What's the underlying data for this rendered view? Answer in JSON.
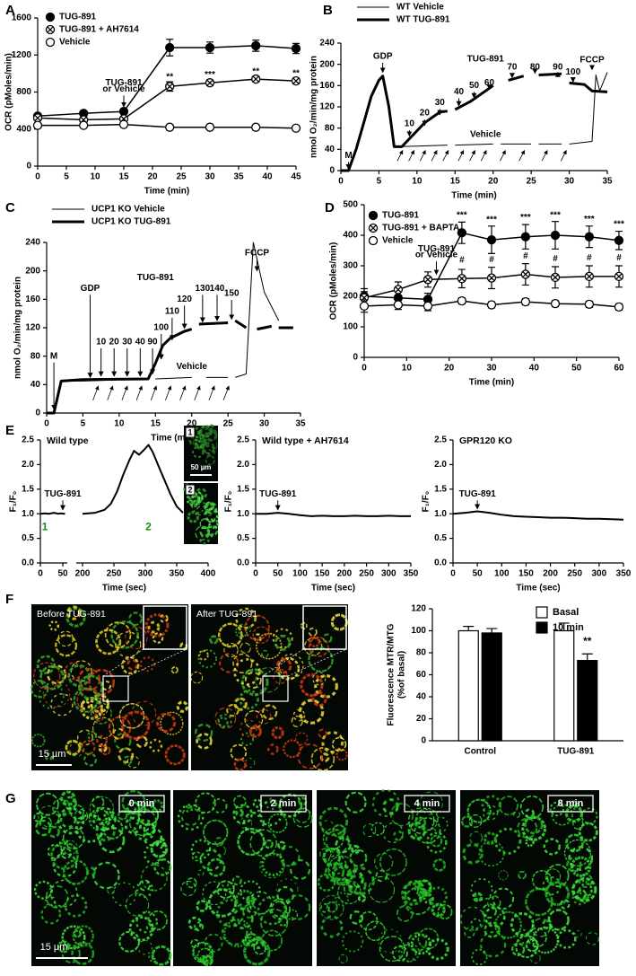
{
  "panel_labels": [
    "A",
    "B",
    "C",
    "D",
    "E",
    "F",
    "G"
  ],
  "chart_data": [
    {
      "type": "line",
      "xlabel": "Time (min)",
      "ylabel": "OCR (pMoles/min)",
      "xlim": [
        0,
        45
      ],
      "xticks": [
        0,
        5,
        10,
        15,
        20,
        25,
        30,
        35,
        40,
        45
      ],
      "ylim": [
        0,
        1600
      ],
      "yticks": [
        0,
        400,
        800,
        1200,
        1600
      ],
      "series": [
        {
          "name": "TUG-891",
          "color": "#000000",
          "marker": "filled",
          "x": [
            0,
            8,
            15,
            23,
            30,
            38,
            45
          ],
          "values": [
            540,
            570,
            590,
            1280,
            1280,
            1300,
            1270
          ],
          "errors": [
            20,
            20,
            25,
            90,
            60,
            60,
            55
          ]
        },
        {
          "name": "TUG-891 + AH7614",
          "color": "#000000",
          "marker": "crossed",
          "x": [
            0,
            8,
            15,
            23,
            30,
            38,
            45
          ],
          "values": [
            520,
            500,
            510,
            860,
            900,
            940,
            920
          ],
          "errors": [
            20,
            20,
            20,
            50,
            30,
            30,
            30
          ]
        },
        {
          "name": "Vehicle",
          "color": "#000000",
          "marker": "open",
          "x": [
            0,
            8,
            15,
            23,
            30,
            38,
            45
          ],
          "values": [
            440,
            440,
            450,
            420,
            420,
            420,
            410
          ],
          "errors": [
            15,
            15,
            15,
            15,
            15,
            15,
            15
          ]
        }
      ],
      "annotations": [
        "TUG-891",
        "or Vehicle",
        "**",
        "***",
        "**",
        "**"
      ]
    },
    {
      "type": "line",
      "xlabel": "Time (min)",
      "ylabel": "nmol O₂/min/mg protein",
      "xlim": [
        0,
        35
      ],
      "xticks": [
        0,
        5,
        10,
        15,
        20,
        25,
        30,
        35
      ],
      "ylim": [
        0,
        240
      ],
      "yticks": [
        0,
        40,
        80,
        120,
        160,
        200,
        240
      ],
      "series": [
        {
          "name": "WT Vehicle",
          "color": "#000000",
          "line_width": 1,
          "x": [
            0,
            1,
            2,
            3,
            4,
            5,
            5.5,
            6.3,
            7,
            10,
            14,
            14.5,
            15,
            20,
            20.5,
            21,
            25,
            25.5,
            26,
            29,
            29.5,
            30,
            33,
            33.5,
            34,
            35
          ],
          "values": [
            0,
            0,
            40,
            90,
            140,
            170,
            178,
            120,
            45,
            46,
            48,
            null,
            48,
            50,
            null,
            50,
            50,
            null,
            50,
            50,
            null,
            50,
            55,
            180,
            150,
            185
          ]
        },
        {
          "name": "WT TUG-891",
          "color": "#000000",
          "line_width": 3,
          "x": [
            0,
            1,
            2,
            3,
            4,
            5,
            5.5,
            6.3,
            7,
            8,
            9,
            10,
            11,
            12,
            13,
            14,
            14.5,
            15,
            17,
            19,
            20,
            20.5,
            22,
            24,
            24.5,
            26,
            29,
            29.5,
            30,
            32,
            33,
            35
          ],
          "values": [
            0,
            0,
            40,
            90,
            140,
            170,
            178,
            120,
            45,
            45,
            60,
            75,
            90,
            100,
            110,
            112,
            null,
            115,
            130,
            150,
            160,
            null,
            170,
            178,
            null,
            180,
            182,
            null,
            165,
            162,
            150,
            148
          ]
        }
      ],
      "annotations": [
        "M",
        "GDP",
        "TUG-891",
        "10",
        "20",
        "30",
        "40",
        "50",
        "60",
        "70",
        "80",
        "90",
        "100",
        "FCCP",
        "Vehicle"
      ]
    },
    {
      "type": "line",
      "xlabel": "Time (min)",
      "ylabel": "nmol O₂/min/mg protein",
      "xlim": [
        0,
        35
      ],
      "xticks": [
        0,
        5,
        10,
        15,
        20,
        25,
        30,
        35
      ],
      "ylim": [
        0,
        240
      ],
      "yticks": [
        0,
        40,
        80,
        120,
        160,
        200,
        240
      ],
      "series": [
        {
          "name": "UCP1 KO Vehicle",
          "color": "#000000",
          "line_width": 1,
          "x": [
            0,
            1,
            2,
            5,
            14,
            14.5,
            15,
            20,
            20.5,
            22,
            25,
            25.5,
            26,
            27.5,
            28.5,
            30,
            32
          ],
          "values": [
            0,
            0,
            45,
            45,
            48,
            null,
            48,
            50,
            null,
            50,
            50,
            null,
            50,
            55,
            240,
            170,
            130
          ]
        },
        {
          "name": "UCP1 KO TUG-891",
          "color": "#000000",
          "line_width": 3,
          "x": [
            0,
            1,
            2,
            5,
            14,
            15,
            16,
            17,
            18,
            19,
            20,
            20.5,
            21,
            25,
            25.5,
            26,
            27.5,
            28,
            29,
            31,
            31.5,
            32,
            34
          ],
          "values": [
            0,
            0,
            45,
            47,
            48,
            70,
            95,
            105,
            110,
            115,
            118,
            null,
            125,
            127,
            null,
            130,
            120,
            null,
            118,
            122,
            null,
            120,
            120
          ]
        }
      ],
      "annotations": [
        "M",
        "GDP",
        "TUG-891",
        "10",
        "20",
        "30",
        "40",
        "90",
        "100",
        "110",
        "120",
        "130",
        "140",
        "150",
        "FCCP",
        "Vehicle"
      ]
    },
    {
      "type": "line",
      "xlabel": "Time (min)",
      "ylabel": "OCR (pMoles/min)",
      "xlim": [
        0,
        60
      ],
      "xticks": [
        0,
        10,
        20,
        30,
        40,
        50,
        60
      ],
      "ylim": [
        0,
        500
      ],
      "yticks": [
        0,
        100,
        200,
        300,
        400,
        500
      ],
      "series": [
        {
          "name": "TUG-891",
          "color": "#000000",
          "marker": "filled",
          "x": [
            0,
            8,
            15,
            23,
            30,
            38,
            45,
            53,
            60
          ],
          "values": [
            200,
            195,
            190,
            408,
            385,
            395,
            400,
            395,
            383
          ],
          "errors": [
            25,
            20,
            20,
            35,
            45,
            40,
            45,
            35,
            30
          ]
        },
        {
          "name": "TUG-891 + BAPTA",
          "color": "#000000",
          "marker": "crossed",
          "x": [
            0,
            8,
            15,
            23,
            30,
            38,
            45,
            53,
            60
          ],
          "values": [
            195,
            222,
            255,
            258,
            260,
            272,
            262,
            265,
            265
          ],
          "errors": [
            20,
            25,
            25,
            30,
            35,
            35,
            35,
            35,
            35
          ]
        },
        {
          "name": "Vehicle",
          "color": "#000000",
          "marker": "open",
          "x": [
            0,
            8,
            15,
            23,
            30,
            38,
            45,
            53,
            60
          ],
          "values": [
            168,
            172,
            168,
            185,
            172,
            182,
            176,
            174,
            165
          ],
          "errors": [
            20,
            15,
            15,
            10,
            10,
            10,
            10,
            10,
            10
          ]
        }
      ],
      "annotations": [
        "TUG-891",
        "or Vehicle",
        "***",
        "***",
        "***",
        "***",
        "***",
        "***",
        "#",
        "#",
        "#",
        "#",
        "#",
        "#"
      ]
    },
    {
      "type": "line",
      "title": "Wild type",
      "xlabel": "Time (sec)",
      "ylabel": "F₁/F₀",
      "xlim": [
        0,
        400
      ],
      "xbreak": [
        60,
        190
      ],
      "xticks": [
        0,
        50,
        200,
        250,
        300,
        350,
        400
      ],
      "ylim": [
        0,
        2.5
      ],
      "yticks": [
        {
          "value": 0,
          "label": "0.0"
        },
        0.5,
        {
          "value": 1,
          "label": "1.0"
        },
        1.5,
        {
          "value": 2,
          "label": "2.0"
        },
        2.5
      ],
      "series": [
        {
          "name": null,
          "color": "#000000",
          "line_width": 2,
          "x": [
            0,
            10,
            20,
            30,
            40,
            45,
            55,
            100,
            200,
            220,
            235,
            245,
            255,
            265,
            275,
            282,
            290,
            298,
            305,
            312,
            320,
            330,
            340,
            350,
            360
          ],
          "values": [
            1.0,
            1.01,
            1.0,
            1.02,
            1.0,
            1.01,
            1.0,
            null,
            1.0,
            1.02,
            1.08,
            1.2,
            1.45,
            1.8,
            2.1,
            2.28,
            2.2,
            2.3,
            2.4,
            2.25,
            2.0,
            1.7,
            1.4,
            1.15,
            1.02
          ]
        }
      ],
      "annotations": [
        "TUG-891",
        "1",
        "2"
      ]
    },
    {
      "type": "line",
      "title": "Wild type + AH7614",
      "xlabel": "Time (sec)",
      "ylabel": "F₁/F₀",
      "xlim": [
        0,
        350
      ],
      "xticks": [
        0,
        50,
        100,
        150,
        200,
        250,
        300,
        350
      ],
      "ylim": [
        0,
        2.5
      ],
      "yticks": [
        {
          "value": 0,
          "label": "0.0"
        },
        0.5,
        {
          "value": 1,
          "label": "1.0"
        },
        1.5,
        {
          "value": 2,
          "label": "2.0"
        },
        2.5
      ],
      "series": [
        {
          "name": null,
          "color": "#000000",
          "line_width": 2,
          "x": [
            0,
            25,
            50,
            75,
            100,
            125,
            150,
            175,
            200,
            225,
            250,
            275,
            300,
            325,
            350
          ],
          "values": [
            1.0,
            1.0,
            1.02,
            1.0,
            0.97,
            0.95,
            0.96,
            0.95,
            0.95,
            0.96,
            0.95,
            0.95,
            0.96,
            0.95,
            0.95
          ]
        }
      ],
      "annotations": [
        "TUG-891"
      ]
    },
    {
      "type": "line",
      "title": "GPR120 KO",
      "xlabel": "Time (sec)",
      "ylabel": "F₁/F₀",
      "xlim": [
        0,
        350
      ],
      "xticks": [
        0,
        50,
        100,
        150,
        200,
        250,
        300,
        350
      ],
      "ylim": [
        0,
        2.5
      ],
      "yticks": [
        {
          "value": 0,
          "label": "0.0"
        },
        0.5,
        {
          "value": 1,
          "label": "1.0"
        },
        1.5,
        {
          "value": 2,
          "label": "2.0"
        },
        2.5
      ],
      "series": [
        {
          "name": null,
          "color": "#000000",
          "line_width": 2,
          "x": [
            0,
            25,
            50,
            75,
            100,
            125,
            150,
            175,
            200,
            225,
            250,
            275,
            300,
            325,
            350
          ],
          "values": [
            1.0,
            1.02,
            1.05,
            1.02,
            0.98,
            0.95,
            0.94,
            0.93,
            0.92,
            0.92,
            0.91,
            0.9,
            0.9,
            0.89,
            0.88
          ]
        }
      ],
      "annotations": [
        "TUG-891"
      ]
    },
    {
      "type": "bar",
      "ylabel": [
        "Fluorescence MTR/MTG",
        "(%of basal)"
      ],
      "categories": [
        "Control",
        "TUG-891"
      ],
      "ylim": [
        0,
        120
      ],
      "yticks": [
        0,
        20,
        40,
        60,
        80,
        100,
        120
      ],
      "series": [
        {
          "name": "Basal",
          "color": "#ffffff",
          "values": [
            100,
            100
          ],
          "errors": [
            4,
            7
          ]
        },
        {
          "name": "10 min",
          "color": "#000000",
          "values": [
            98,
            73
          ],
          "errors": [
            4,
            6
          ]
        }
      ],
      "annotations": [
        "**"
      ]
    }
  ],
  "images": {
    "E_labels": [
      "1",
      "2"
    ],
    "E_scale": "50 µm",
    "F_labels": [
      "Before TUG-891",
      "After TUG-891"
    ],
    "F_scale": "15 µm",
    "G_labels": [
      "0 min",
      "2 min",
      "4 min",
      "8 min"
    ],
    "G_scale": "15 µm"
  }
}
